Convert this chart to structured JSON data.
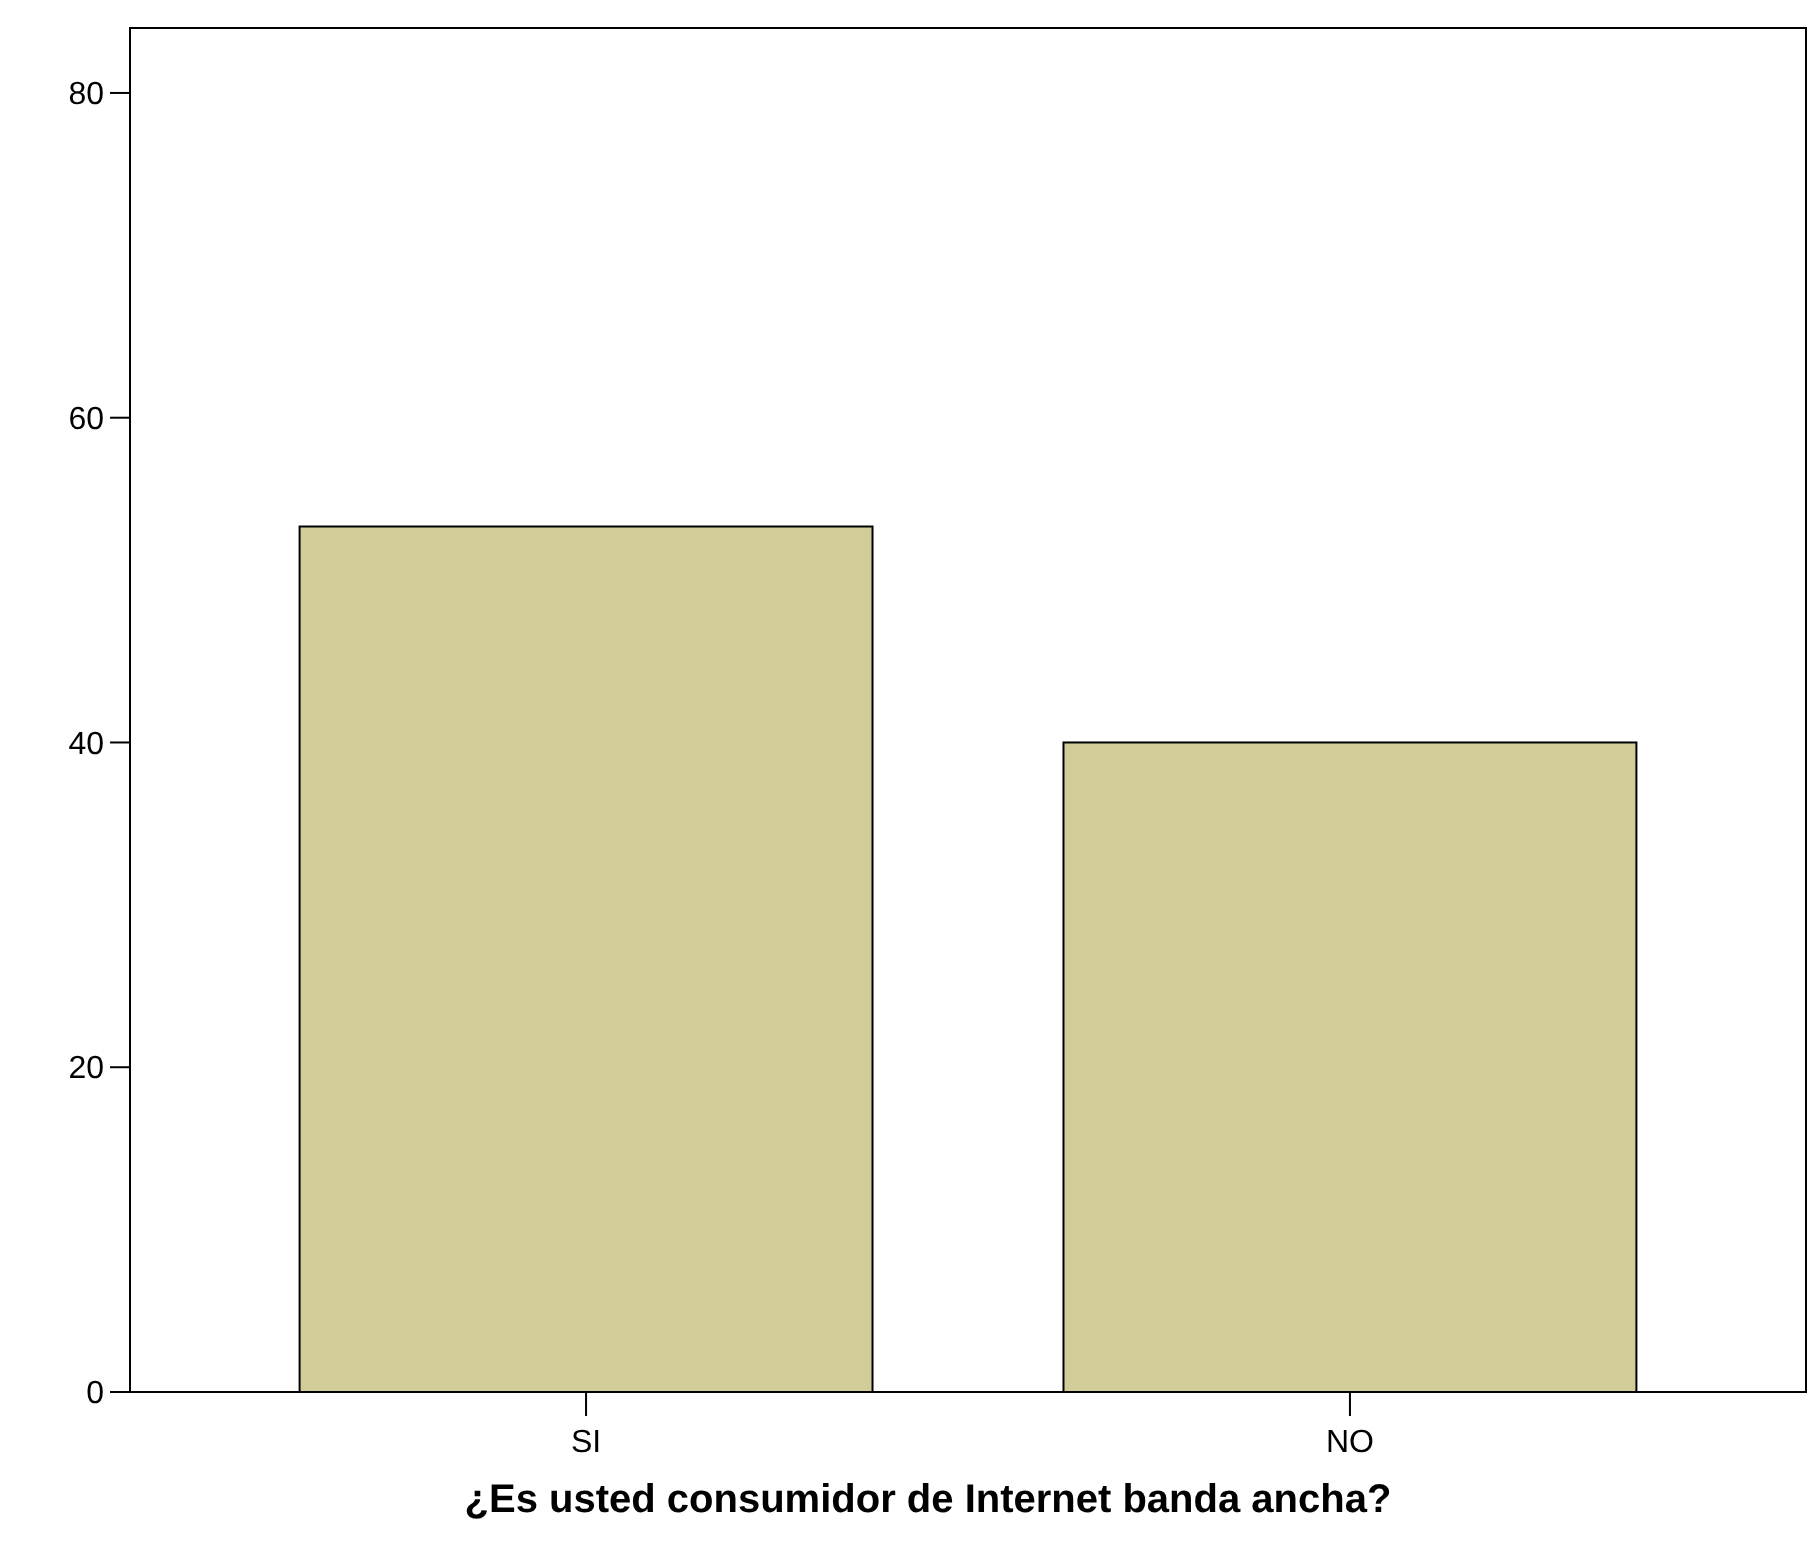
{
  "chart_data": {
    "type": "bar",
    "xlabel": "¿Es usted consumidor de Internet banda ancha?",
    "categories": [
      "SI",
      "NO"
    ],
    "values": [
      53.3,
      40.0
    ],
    "color": "#d2cd98",
    "ylim": [
      0,
      84
    ],
    "yticks": [
      0,
      20,
      40,
      60,
      80
    ],
    "grid": false
  }
}
